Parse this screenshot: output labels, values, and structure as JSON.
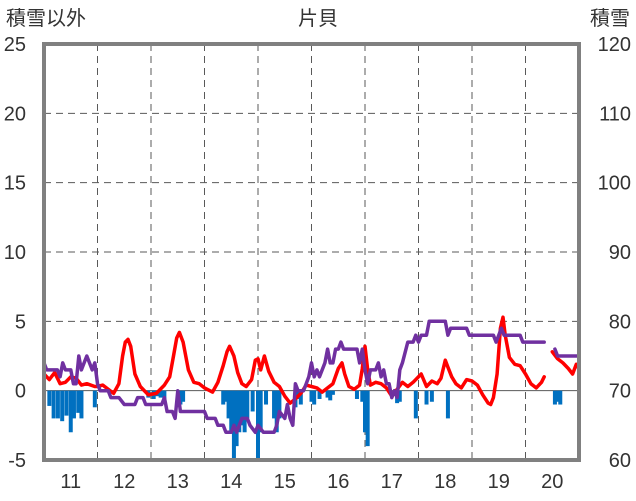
{
  "chart_data": {
    "type": "line",
    "title": "片貝",
    "ylabel_left": "積雪以外",
    "ylabel_right": "積雪",
    "ylim_left": [
      -5,
      25
    ],
    "ylim_right": [
      60,
      120
    ],
    "yticks_left": [
      "25",
      "20",
      "15",
      "10",
      "5",
      "0",
      "-5"
    ],
    "yticks_right": [
      "120",
      "110",
      "100",
      "90",
      "80",
      "70",
      "60"
    ],
    "xlim": [
      10.5,
      20.5
    ],
    "xticks": [
      "11",
      "12",
      "13",
      "14",
      "15",
      "16",
      "17",
      "18",
      "19",
      "20"
    ],
    "grid": "dashed",
    "colors": {
      "temperature": "#ff0000",
      "snow_depth": "#7030a0",
      "bars": "#0070c0",
      "axis": "#808080",
      "grid": "#595959",
      "text": "#333333"
    },
    "series": [
      {
        "axis": "left",
        "style": "line",
        "color": "#ff0000",
        "points": [
          [
            10.5,
            1.2
          ],
          [
            10.6,
            0.8
          ],
          [
            10.7,
            1.3
          ],
          [
            10.8,
            0.5
          ],
          [
            10.9,
            0.6
          ],
          [
            11.0,
            1.0
          ],
          [
            11.1,
            0.9
          ],
          [
            11.2,
            0.4
          ],
          [
            11.3,
            0.5
          ],
          [
            11.45,
            0.3
          ],
          [
            11.5,
            0.3
          ],
          [
            11.6,
            0.4
          ],
          [
            11.7,
            0.1
          ],
          [
            11.8,
            -0.2
          ],
          [
            11.9,
            0.5
          ],
          [
            11.97,
            2.5
          ],
          [
            12.02,
            3.5
          ],
          [
            12.07,
            3.7
          ],
          [
            12.12,
            3.2
          ],
          [
            12.2,
            1.2
          ],
          [
            12.3,
            0.3
          ],
          [
            12.45,
            -0.3
          ],
          [
            12.6,
            -0.2
          ],
          [
            12.75,
            0.4
          ],
          [
            12.85,
            1.0
          ],
          [
            12.92,
            2.5
          ],
          [
            12.98,
            3.8
          ],
          [
            13.03,
            4.2
          ],
          [
            13.1,
            3.5
          ],
          [
            13.2,
            1.5
          ],
          [
            13.3,
            0.6
          ],
          [
            13.4,
            0.5
          ],
          [
            13.5,
            0.2
          ],
          [
            13.65,
            -0.1
          ],
          [
            13.75,
            0.6
          ],
          [
            13.85,
            1.8
          ],
          [
            13.92,
            2.8
          ],
          [
            13.97,
            3.2
          ],
          [
            14.05,
            2.5
          ],
          [
            14.12,
            1.3
          ],
          [
            14.2,
            0.5
          ],
          [
            14.28,
            0.3
          ],
          [
            14.38,
            0.8
          ],
          [
            14.45,
            2.2
          ],
          [
            14.5,
            2.3
          ],
          [
            14.55,
            1.5
          ],
          [
            14.62,
            2.5
          ],
          [
            14.7,
            1.4
          ],
          [
            14.8,
            0.6
          ],
          [
            14.9,
            0.3
          ],
          [
            15.0,
            -0.4
          ],
          [
            15.1,
            -0.9
          ],
          [
            15.2,
            -0.6
          ],
          [
            15.3,
            -0.2
          ],
          [
            15.4,
            0.4
          ],
          [
            15.5,
            0.3
          ],
          [
            15.6,
            0.2
          ],
          [
            15.7,
            -0.1
          ],
          [
            15.8,
            0.2
          ],
          [
            15.9,
            0.5
          ],
          [
            16.0,
            1.6
          ],
          [
            16.07,
            2.0
          ],
          [
            16.12,
            1.2
          ],
          [
            16.2,
            0.3
          ],
          [
            16.3,
            0.1
          ],
          [
            16.4,
            0.4
          ],
          [
            16.45,
            1.6
          ],
          [
            16.5,
            3.2
          ],
          [
            16.55,
            1.5
          ],
          [
            16.6,
            0.4
          ],
          [
            16.7,
            0.6
          ],
          [
            16.8,
            0.5
          ],
          [
            16.9,
            0.2
          ],
          [
            17.0,
            -0.4
          ],
          [
            17.1,
            0.1
          ],
          [
            17.2,
            0.6
          ],
          [
            17.3,
            0.3
          ],
          [
            17.4,
            0.6
          ],
          [
            17.55,
            1.2
          ],
          [
            17.65,
            0.3
          ],
          [
            17.75,
            0.7
          ],
          [
            17.85,
            0.5
          ],
          [
            17.92,
            0.9
          ],
          [
            18.0,
            2.2
          ],
          [
            18.05,
            1.7
          ],
          [
            18.12,
            1.0
          ],
          [
            18.2,
            0.5
          ],
          [
            18.3,
            0.2
          ],
          [
            18.4,
            0.8
          ],
          [
            18.5,
            0.7
          ],
          [
            18.6,
            0.4
          ],
          [
            18.7,
            -0.3
          ],
          [
            18.8,
            -0.9
          ],
          [
            18.85,
            -1.0
          ],
          [
            18.9,
            -0.5
          ],
          [
            18.97,
            1.2
          ],
          [
            19.03,
            4.5
          ],
          [
            19.08,
            5.3
          ],
          [
            19.12,
            4.0
          ],
          [
            19.2,
            2.4
          ],
          [
            19.3,
            1.9
          ],
          [
            19.4,
            1.8
          ],
          [
            19.5,
            1.2
          ],
          [
            19.6,
            0.5
          ],
          [
            19.7,
            0.2
          ],
          [
            19.8,
            0.6
          ],
          [
            19.85,
            1.0
          ]
        ]
      },
      {
        "axis": "left",
        "style": "line",
        "color": "#ff0000",
        "points": [
          [
            20.0,
            2.8
          ],
          [
            20.1,
            2.3
          ],
          [
            20.2,
            2.0
          ],
          [
            20.3,
            1.6
          ],
          [
            20.38,
            1.2
          ],
          [
            20.45,
            1.9
          ],
          [
            20.5,
            1.6
          ]
        ]
      },
      {
        "axis": "right",
        "style": "line",
        "color": "#7030a0",
        "points": [
          [
            10.5,
            74
          ],
          [
            10.55,
            73
          ],
          [
            10.75,
            73
          ],
          [
            10.8,
            72
          ],
          [
            10.85,
            74
          ],
          [
            10.9,
            73
          ],
          [
            11.0,
            73
          ],
          [
            11.05,
            71
          ],
          [
            11.1,
            71
          ],
          [
            11.15,
            75
          ],
          [
            11.2,
            73
          ],
          [
            11.25,
            74
          ],
          [
            11.3,
            75
          ],
          [
            11.35,
            74
          ],
          [
            11.4,
            73
          ],
          [
            11.45,
            74
          ],
          [
            11.5,
            71
          ],
          [
            11.55,
            70
          ],
          [
            11.7,
            70
          ],
          [
            11.75,
            69
          ],
          [
            11.9,
            69
          ],
          [
            12.0,
            68
          ],
          [
            12.2,
            68
          ],
          [
            12.25,
            69
          ],
          [
            12.35,
            69
          ],
          [
            12.4,
            68
          ],
          [
            12.7,
            68
          ],
          [
            12.75,
            69
          ],
          [
            12.8,
            67
          ],
          [
            12.9,
            67
          ],
          [
            12.95,
            66
          ],
          [
            13.0,
            70
          ],
          [
            13.05,
            67
          ],
          [
            13.5,
            67
          ],
          [
            13.55,
            66
          ],
          [
            13.7,
            66
          ],
          [
            13.75,
            65
          ],
          [
            13.85,
            65
          ],
          [
            13.9,
            64
          ],
          [
            14.0,
            64
          ],
          [
            14.05,
            65
          ],
          [
            14.1,
            64
          ],
          [
            14.2,
            66
          ],
          [
            14.3,
            66
          ],
          [
            14.35,
            65
          ],
          [
            14.45,
            64
          ],
          [
            14.5,
            65
          ],
          [
            14.6,
            64
          ],
          [
            14.8,
            64
          ],
          [
            14.85,
            65
          ],
          [
            14.9,
            67
          ],
          [
            15.0,
            66
          ],
          [
            15.05,
            68
          ],
          [
            15.1,
            66
          ],
          [
            15.15,
            65
          ],
          [
            15.2,
            71
          ],
          [
            15.25,
            70
          ],
          [
            15.35,
            70
          ],
          [
            15.4,
            71
          ],
          [
            15.45,
            72
          ],
          [
            15.5,
            74
          ],
          [
            15.55,
            72
          ],
          [
            15.6,
            73
          ],
          [
            15.65,
            72
          ],
          [
            15.75,
            74
          ],
          [
            15.8,
            76
          ],
          [
            15.85,
            74
          ],
          [
            15.9,
            74
          ],
          [
            15.95,
            76
          ],
          [
            16.0,
            76
          ],
          [
            16.05,
            77
          ],
          [
            16.1,
            76
          ],
          [
            16.35,
            76
          ],
          [
            16.4,
            74
          ],
          [
            16.45,
            76
          ],
          [
            16.5,
            73
          ],
          [
            16.55,
            71
          ],
          [
            16.6,
            73
          ],
          [
            16.7,
            73
          ],
          [
            16.75,
            74
          ],
          [
            16.8,
            72
          ],
          [
            16.85,
            73
          ],
          [
            16.9,
            71
          ],
          [
            16.95,
            71
          ],
          [
            17.0,
            69
          ],
          [
            17.05,
            70
          ],
          [
            17.1,
            69
          ],
          [
            17.15,
            73
          ],
          [
            17.2,
            74
          ],
          [
            17.3,
            77
          ],
          [
            17.4,
            77
          ],
          [
            17.45,
            78
          ],
          [
            17.5,
            77
          ],
          [
            17.55,
            78
          ],
          [
            17.65,
            78
          ],
          [
            17.7,
            80
          ],
          [
            18.0,
            80
          ],
          [
            18.05,
            78
          ],
          [
            18.1,
            79
          ],
          [
            18.4,
            79
          ],
          [
            18.45,
            78
          ],
          [
            18.9,
            78
          ],
          [
            18.95,
            77
          ],
          [
            19.0,
            78
          ],
          [
            19.05,
            79
          ],
          [
            19.1,
            78
          ],
          [
            19.4,
            78
          ],
          [
            19.45,
            77
          ],
          [
            19.85,
            77
          ]
        ]
      },
      {
        "axis": "right",
        "style": "line",
        "color": "#7030a0",
        "points": [
          [
            20.05,
            76
          ],
          [
            20.1,
            75
          ],
          [
            20.15,
            75
          ],
          [
            20.2,
            75
          ],
          [
            20.5,
            75
          ]
        ]
      },
      {
        "axis": "left",
        "style": "bar",
        "color": "#0070c0",
        "points": [
          [
            10.6,
            -1.1
          ],
          [
            10.68,
            -2.0
          ],
          [
            10.76,
            -2.0
          ],
          [
            10.84,
            -2.2
          ],
          [
            10.92,
            -1.8
          ],
          [
            11.0,
            -3.0
          ],
          [
            11.06,
            -2.0
          ],
          [
            11.14,
            -1.6
          ],
          [
            11.2,
            -2.0
          ],
          [
            11.45,
            -1.2
          ],
          [
            12.45,
            -0.5
          ],
          [
            12.55,
            -0.6
          ],
          [
            12.62,
            -0.4
          ],
          [
            12.68,
            -0.5
          ],
          [
            12.75,
            -0.6
          ],
          [
            13.05,
            -1.0
          ],
          [
            13.1,
            -0.8
          ],
          [
            13.85,
            -1.0
          ],
          [
            13.9,
            -0.8
          ],
          [
            13.95,
            -2.0
          ],
          [
            14.0,
            -3.0
          ],
          [
            14.05,
            -5.0
          ],
          [
            14.1,
            -4.0
          ],
          [
            14.15,
            -3.0
          ],
          [
            14.2,
            -2.5
          ],
          [
            14.25,
            -3.0
          ],
          [
            14.3,
            -2.0
          ],
          [
            14.4,
            -1.5
          ],
          [
            14.5,
            -5.0
          ],
          [
            14.55,
            -3.0
          ],
          [
            14.65,
            -1.0
          ],
          [
            14.8,
            -2.0
          ],
          [
            14.85,
            -3.0
          ],
          [
            14.9,
            -2.0
          ],
          [
            15.2,
            -1.2
          ],
          [
            15.25,
            -0.6
          ],
          [
            15.3,
            -1.0
          ],
          [
            15.5,
            -0.8
          ],
          [
            15.55,
            -1.0
          ],
          [
            15.65,
            -0.6
          ],
          [
            15.8,
            -0.5
          ],
          [
            15.85,
            -0.7
          ],
          [
            15.9,
            -0.3
          ],
          [
            16.35,
            -0.6
          ],
          [
            16.45,
            -0.8
          ],
          [
            16.5,
            -3.0
          ],
          [
            16.55,
            -4.0
          ],
          [
            17.1,
            -0.9
          ],
          [
            17.15,
            -0.8
          ],
          [
            17.45,
            -2.0
          ],
          [
            17.65,
            -1.0
          ],
          [
            17.75,
            -0.8
          ],
          [
            18.05,
            -2.0
          ],
          [
            20.05,
            -1.0
          ],
          [
            20.1,
            -0.8
          ],
          [
            20.15,
            -1.0
          ]
        ]
      }
    ]
  }
}
